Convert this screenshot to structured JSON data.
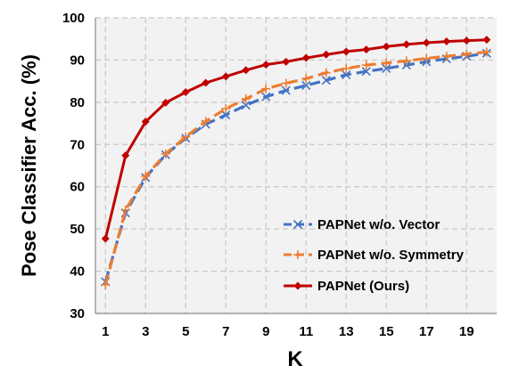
{
  "chart_data": {
    "type": "line",
    "xlabel": "K",
    "ylabel": "Pose Classifier Acc. (%)",
    "ylim": [
      30,
      100
    ],
    "xlim": [
      0.5,
      20.5
    ],
    "yticks": [
      30,
      40,
      50,
      60,
      70,
      80,
      90,
      100
    ],
    "xticks": [
      1,
      3,
      5,
      7,
      9,
      11,
      13,
      15,
      17,
      19
    ],
    "grid": true,
    "legend_position": "bottom-right",
    "x": [
      1,
      2,
      3,
      4,
      5,
      6,
      7,
      8,
      9,
      10,
      11,
      12,
      13,
      14,
      15,
      16,
      17,
      18,
      19,
      20
    ],
    "series": [
      {
        "name": "PAPNet w/o. Vector",
        "color": "#4472c4",
        "dash": "dashed",
        "marker": "x",
        "values": [
          37.5,
          53.8,
          62.2,
          67.6,
          71.5,
          74.8,
          77.0,
          79.3,
          81.3,
          82.8,
          84.0,
          85.2,
          86.5,
          87.3,
          88.0,
          88.8,
          89.6,
          90.3,
          90.9,
          91.6
        ]
      },
      {
        "name": "PAPNet w/o. Symmetry",
        "color": "#ed7d31",
        "dash": "dashed",
        "marker": "plus",
        "values": [
          36.8,
          54.5,
          62.5,
          67.8,
          71.8,
          75.5,
          78.5,
          80.8,
          83.2,
          84.5,
          85.6,
          87.0,
          88.0,
          88.8,
          89.3,
          89.8,
          90.4,
          90.9,
          91.4,
          91.9
        ]
      },
      {
        "name": "PAPNet (Ours)",
        "color": "#c00000",
        "dash": "solid",
        "marker": "diamond",
        "values": [
          47.7,
          67.4,
          75.4,
          79.9,
          82.4,
          84.6,
          86.1,
          87.6,
          88.9,
          89.6,
          90.5,
          91.3,
          92.0,
          92.5,
          93.2,
          93.7,
          94.1,
          94.4,
          94.6,
          94.8
        ]
      }
    ]
  }
}
